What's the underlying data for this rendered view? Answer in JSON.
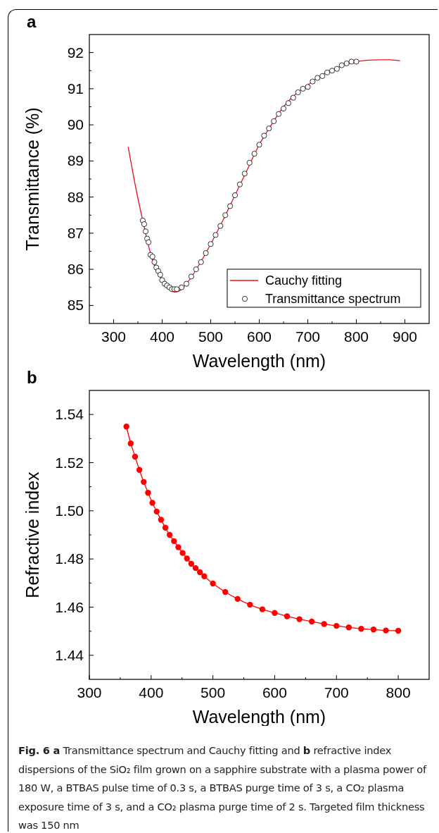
{
  "chart_data": [
    {
      "type": "line",
      "title": "a",
      "xlabel": "Wavelength (nm)",
      "ylabel": "Transmittance (%)",
      "xlim": [
        250,
        950
      ],
      "ylim": [
        84.5,
        92.5
      ],
      "xticks": [
        300,
        {
          "value": 350,
          "label": null
        },
        400,
        {
          "value": 450,
          "label": null
        },
        500,
        {
          "value": 550,
          "label": null
        },
        600,
        {
          "value": 650,
          "label": null
        },
        700,
        {
          "value": 750,
          "label": null
        },
        800,
        {
          "value": 850,
          "label": null
        },
        900
      ],
      "yticks": [
        85,
        {
          "value": 85.5,
          "label": null
        },
        86,
        {
          "value": 86.5,
          "label": null
        },
        87,
        {
          "value": 87.5,
          "label": null
        },
        88,
        {
          "value": 88.5,
          "label": null
        },
        89,
        {
          "value": 89.5,
          "label": null
        },
        90,
        {
          "value": 90.5,
          "label": null
        },
        91,
        {
          "value": 91.5,
          "label": null
        },
        92
      ],
      "legend": "bottom right",
      "grid": false,
      "series": [
        {
          "type": "line",
          "name": "Cauchy fitting",
          "color": "#e8101a",
          "marker": "none",
          "x": [
            330,
            345,
            360,
            380,
            400,
            415,
            425,
            435,
            450,
            475,
            500,
            525,
            550,
            575,
            600,
            625,
            650,
            675,
            700,
            725,
            750,
            775,
            800,
            825,
            850,
            870,
            890
          ],
          "values": [
            89.39,
            88.3,
            87.35,
            86.25,
            85.7,
            85.45,
            85.37,
            85.4,
            85.6,
            86.1,
            86.7,
            87.35,
            88.05,
            88.75,
            89.45,
            90.0,
            90.5,
            90.85,
            91.1,
            91.35,
            91.52,
            91.66,
            91.75,
            91.79,
            91.8,
            91.8,
            91.77
          ]
        },
        {
          "type": "scatter",
          "name": "Transmittance spectrum",
          "color": "#000000",
          "marker": "circle",
          "x": [
            360,
            363,
            366,
            369,
            372,
            376,
            380,
            384,
            388,
            392,
            396,
            400,
            405,
            410,
            415,
            420,
            425,
            430,
            440,
            450,
            460,
            470,
            480,
            490,
            500,
            510,
            520,
            530,
            540,
            550,
            560,
            570,
            580,
            590,
            600,
            610,
            620,
            630,
            640,
            650,
            660,
            670,
            680,
            690,
            700,
            710,
            720,
            730,
            740,
            750,
            760,
            770,
            780,
            790,
            800
          ],
          "values": [
            87.35,
            87.25,
            87.05,
            86.85,
            86.75,
            86.4,
            86.35,
            86.2,
            86.05,
            85.95,
            85.85,
            85.7,
            85.6,
            85.55,
            85.5,
            85.45,
            85.45,
            85.45,
            85.5,
            85.6,
            85.8,
            86.0,
            86.2,
            86.45,
            86.7,
            86.95,
            87.2,
            87.5,
            87.75,
            88.05,
            88.35,
            88.65,
            88.95,
            89.2,
            89.45,
            89.7,
            89.9,
            90.1,
            90.3,
            90.45,
            90.6,
            90.75,
            90.9,
            91.0,
            91.05,
            91.2,
            91.3,
            91.35,
            91.45,
            91.5,
            91.55,
            91.65,
            91.7,
            91.75,
            91.75
          ]
        }
      ]
    },
    {
      "type": "line",
      "title": "b",
      "xlabel": "Wavelength (nm)",
      "ylabel": "Refractive index",
      "xlim": [
        300,
        850
      ],
      "ylim": [
        1.43,
        1.55
      ],
      "xticks": [
        300,
        {
          "value": 350,
          "label": null
        },
        400,
        {
          "value": 450,
          "label": null
        },
        500,
        {
          "value": 550,
          "label": null
        },
        600,
        {
          "value": 650,
          "label": null
        },
        700,
        {
          "value": 750,
          "label": null
        },
        800
      ],
      "yticks": [
        {
          "value": 1.44,
          "label": "1.44"
        },
        {
          "value": 1.45,
          "label": null
        },
        {
          "value": 1.46,
          "label": "1.46"
        },
        {
          "value": 1.47,
          "label": null
        },
        {
          "value": 1.48,
          "label": "1.48"
        },
        {
          "value": 1.49,
          "label": null
        },
        {
          "value": 1.5,
          "label": "1.50"
        },
        {
          "value": 1.51,
          "label": null
        },
        {
          "value": 1.52,
          "label": "1.52"
        },
        {
          "value": 1.53,
          "label": null
        },
        {
          "value": 1.54,
          "label": "1.54"
        }
      ],
      "legend": false,
      "grid": false,
      "marker": "circle",
      "line_style": "solid",
      "annotations": [
        "**Fig. 6 a** Transmittance spectrum and Cauchy fitting and **b** refractive index dispersions of the SiO₂ film grown on a sapphire substrate with a plasma power of 180 W, a BTBAS pulse time of 0.3 s, a BTBAS purge time of 3 s, a CO₂ plasma exposure time of 3 s, and a CO₂ plasma purge time of 2 s. Targeted film thickness was 150 nm"
      ],
      "series": [
        {
          "color": "#ff0000",
          "x": [
            360,
            367,
            374,
            381,
            388,
            395,
            402,
            409,
            416,
            423,
            430,
            437,
            444,
            451,
            458,
            465,
            472,
            479,
            486,
            500,
            520,
            540,
            560,
            580,
            600,
            620,
            640,
            660,
            680,
            700,
            720,
            740,
            760,
            780,
            800
          ],
          "values": [
            1.535,
            1.528,
            1.5225,
            1.517,
            1.512,
            1.5075,
            1.5033,
            1.4997,
            1.4963,
            1.493,
            1.49,
            1.4874,
            1.4849,
            1.4825,
            1.4802,
            1.478,
            1.4762,
            1.4745,
            1.4728,
            1.4698,
            1.4663,
            1.4634,
            1.461,
            1.4591,
            1.4576,
            1.4562,
            1.455,
            1.454,
            1.453,
            1.4522,
            1.4516,
            1.451,
            1.4507,
            1.4503,
            1.4502
          ]
        }
      ]
    }
  ]
}
